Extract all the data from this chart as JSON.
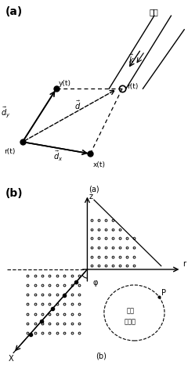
{
  "fig_bg": "#ffffff",
  "panel_a_label": "(a)",
  "panel_b_label": "(b)",
  "caption_a": "(a)",
  "caption_b": "(b)",
  "wavefront_label": "波前",
  "z_label": "z",
  "x_label": "X",
  "r_axis_label": "r",
  "phi_label": "φ",
  "p_label": "P",
  "circle_text_line1": "圆弧",
  "circle_text_line2": "传感器"
}
